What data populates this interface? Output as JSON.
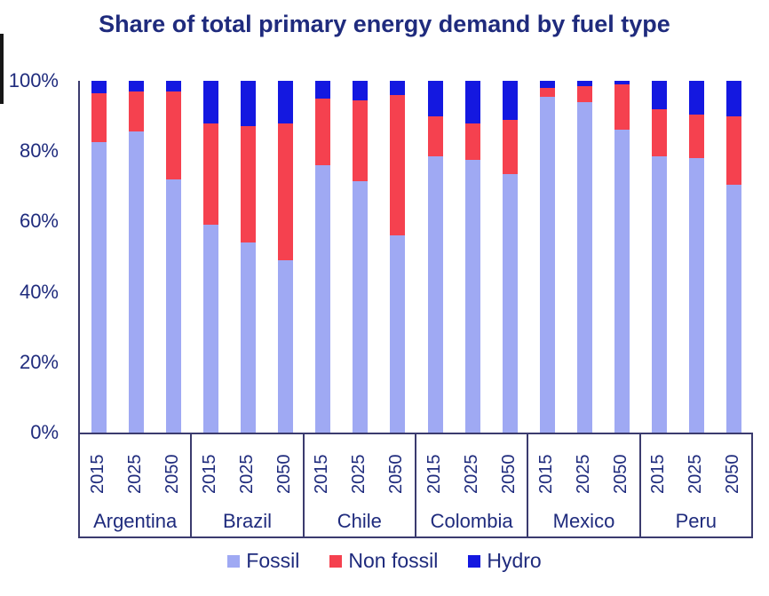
{
  "colors": {
    "fossil": "#9FA9F3",
    "non_fossil": "#F5414F",
    "hydro": "#1418E0",
    "text": "#1F2B7D",
    "axis_line": "#3B3B6E"
  },
  "ui": {
    "y_ticks_top_down": [
      "100%",
      "80%",
      "60%",
      "40%",
      "20%",
      "0%"
    ]
  },
  "chart_data": {
    "type": "bar",
    "stacked": true,
    "title": "Share of total primary energy demand by fuel type",
    "xlabel": "",
    "ylabel": "",
    "unit": "%",
    "ylim": [
      0,
      100
    ],
    "y_ticks": [
      "0%",
      "20%",
      "40%",
      "60%",
      "80%",
      "100%"
    ],
    "grid": false,
    "legend_position": "bottom",
    "categories": [
      "Argentina",
      "Brazil",
      "Chile",
      "Colombia",
      "Mexico",
      "Peru"
    ],
    "sub_categories": [
      "2015",
      "2025",
      "2050"
    ],
    "series": [
      {
        "name": "Fossil",
        "color": "#9FA9F3",
        "values": [
          [
            82.5,
            85.5,
            72
          ],
          [
            59,
            54,
            49
          ],
          [
            76,
            71.5,
            56
          ],
          [
            78.5,
            77.5,
            73.5
          ],
          [
            95.5,
            94,
            86
          ],
          [
            78.5,
            78,
            70.5
          ]
        ]
      },
      {
        "name": "Non fossil",
        "color": "#F5414F",
        "values": [
          [
            14,
            11.5,
            25
          ],
          [
            29,
            33,
            39
          ],
          [
            19,
            23,
            40
          ],
          [
            11.5,
            10.5,
            15.5
          ],
          [
            2.5,
            4.5,
            13
          ],
          [
            13.5,
            12.5,
            19.5
          ]
        ]
      },
      {
        "name": "Hydro",
        "color": "#1418E0",
        "values": [
          [
            3.5,
            3,
            3
          ],
          [
            12,
            13,
            12
          ],
          [
            5,
            5.5,
            4
          ],
          [
            10,
            12,
            11
          ],
          [
            2,
            1.5,
            1
          ],
          [
            8,
            9.5,
            10
          ]
        ]
      }
    ]
  }
}
